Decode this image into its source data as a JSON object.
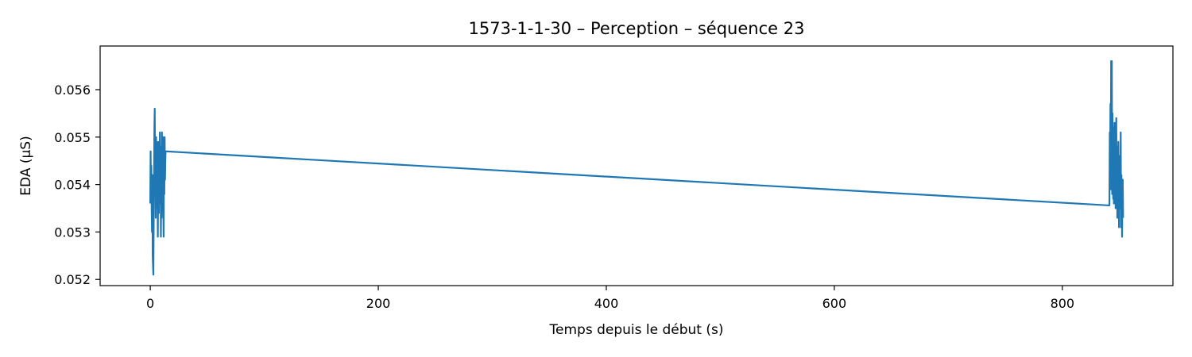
{
  "chart_data": {
    "type": "line",
    "title": "1573-1-1-30 – Perception – séquence 23",
    "xlabel": "Temps depuis le début (s)",
    "ylabel": "EDA (µS)",
    "xlim": [
      -44,
      897
    ],
    "ylim": [
      0.05187,
      0.05692
    ],
    "xticks": [
      0,
      200,
      400,
      600,
      800
    ],
    "yticks": [
      0.052,
      0.053,
      0.054,
      0.055,
      0.056
    ],
    "ytick_labels": [
      "0.052",
      "0.053",
      "0.054",
      "0.055",
      "0.056"
    ],
    "grid": false,
    "series": [
      {
        "color": "#1f77b4",
        "x": [
          0.0,
          0.3,
          0.6,
          0.9,
          1.2,
          1.5,
          1.8,
          2.1,
          2.4,
          2.7,
          3.0,
          3.3,
          3.6,
          3.9,
          4.2,
          4.5,
          4.8,
          5.1,
          5.4,
          5.7,
          6.0,
          6.3,
          6.6,
          6.9,
          7.2,
          7.5,
          7.8,
          8.1,
          8.4,
          8.7,
          9.0,
          9.3,
          9.6,
          9.9,
          10.2,
          10.5,
          10.8,
          11.1,
          11.4,
          11.7,
          12.0,
          12.3,
          12.6,
          12.9,
          13.2,
          13.4,
          841.3,
          841.6,
          841.9,
          842.2,
          842.5,
          842.8,
          843.1,
          843.4,
          843.7,
          844.0,
          844.3,
          844.6,
          844.9,
          845.2,
          845.5,
          845.8,
          846.1,
          846.4,
          846.7,
          847.0,
          847.3,
          847.6,
          847.9,
          848.2,
          848.5,
          848.8,
          849.1,
          849.4,
          849.7,
          850.0,
          850.3,
          850.6,
          850.9,
          851.2,
          851.5,
          851.8,
          852.1,
          852.4,
          852.7,
          853.0,
          853.3
        ],
        "y": [
          0.0536,
          0.0547,
          0.0538,
          0.0544,
          0.0535,
          0.053,
          0.0542,
          0.0525,
          0.0523,
          0.0521,
          0.0533,
          0.0541,
          0.0552,
          0.0556,
          0.0544,
          0.0548,
          0.0533,
          0.055,
          0.0537,
          0.0549,
          0.0535,
          0.0544,
          0.0529,
          0.054,
          0.0549,
          0.0534,
          0.0547,
          0.0536,
          0.0551,
          0.0536,
          0.0548,
          0.0529,
          0.0544,
          0.0533,
          0.0551,
          0.0538,
          0.0542,
          0.055,
          0.0536,
          0.0529,
          0.0544,
          0.0538,
          0.055,
          0.0541,
          0.0545,
          0.0547,
          0.05356,
          0.0551,
          0.0543,
          0.0557,
          0.0539,
          0.0566,
          0.0545,
          0.0566,
          0.0538,
          0.0555,
          0.0546,
          0.0537,
          0.0552,
          0.0536,
          0.0548,
          0.0553,
          0.0543,
          0.0549,
          0.0535,
          0.0546,
          0.0554,
          0.0537,
          0.0548,
          0.0533,
          0.0545,
          0.0539,
          0.0549,
          0.0541,
          0.0531,
          0.0546,
          0.0535,
          0.0543,
          0.0538,
          0.0551,
          0.0531,
          0.0542,
          0.0539,
          0.0529,
          0.0539,
          0.0541,
          0.0533
        ]
      }
    ]
  }
}
